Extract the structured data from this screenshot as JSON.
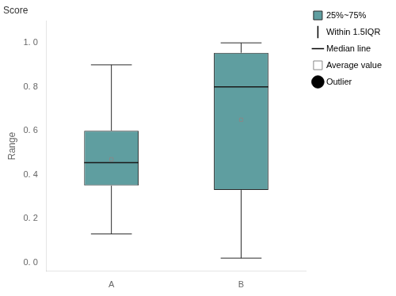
{
  "chart_data": {
    "type": "box",
    "annotations": [
      "Score"
    ],
    "y_label": "Range",
    "categories": [
      "A",
      "B"
    ],
    "boxes": [
      {
        "q1": 0.35,
        "median": 0.455,
        "q3": 0.6,
        "whisker_low": 0.13,
        "whisker_high": 0.9,
        "mean": 0.47,
        "outliers": []
      },
      {
        "q1": 0.33,
        "median": 0.8,
        "q3": 0.955,
        "whisker_low": 0.02,
        "whisker_high": 1.0,
        "mean": 0.65,
        "outliers": []
      }
    ],
    "color": "#5f9ea0",
    "ylim": [
      -0.04,
      1.1
    ],
    "yticks": [
      {
        "value": 0.0,
        "label": "0. 0"
      },
      {
        "value": 0.2,
        "label": "0. 2"
      },
      {
        "value": 0.4,
        "label": "0. 4"
      },
      {
        "value": 0.6,
        "label": "0. 6"
      },
      {
        "value": 0.8,
        "label": "0. 8"
      },
      {
        "value": 1.0,
        "label": "1. 0"
      }
    ],
    "grid": false,
    "legend": "upper right",
    "legend_entries": [
      "25%~75%",
      "Within 1.5IQR",
      "Median line",
      "Average value",
      "Outlier"
    ]
  }
}
